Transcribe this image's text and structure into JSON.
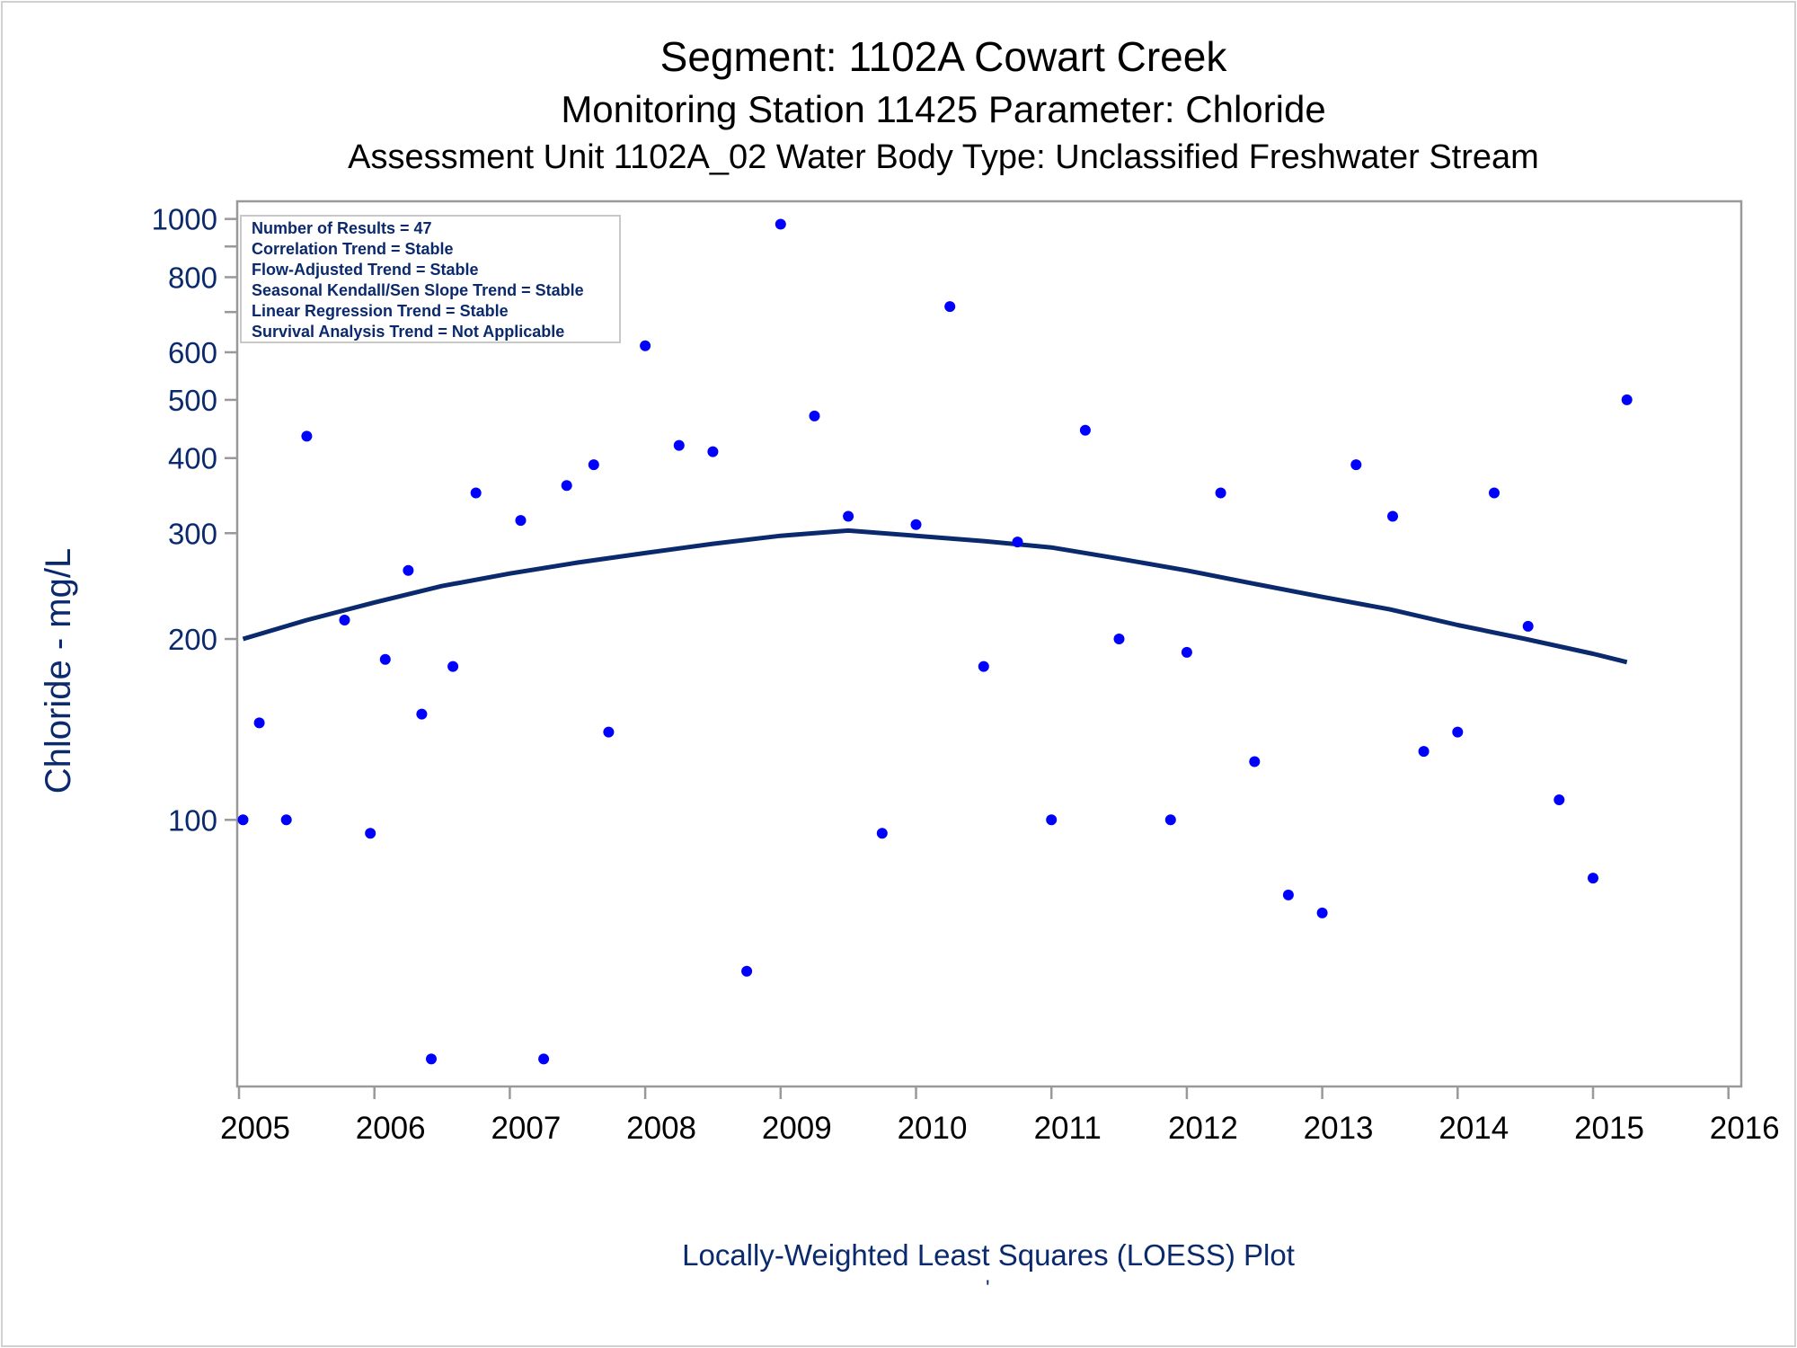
{
  "title": "Segment: 1102A  Cowart Creek",
  "subtitle": "Monitoring Station 11425 Parameter: Chloride",
  "subtitle2": "Assessment Unit 1102A_02   Water Body Type: Unclassified Freshwater Stream",
  "footer": "Locally-Weighted Least Squares (LOESS) Plot",
  "footer_mark": "'",
  "chart_data": {
    "type": "scatter",
    "title": "Segment: 1102A  Cowart Creek",
    "ylabel": "Chloride - mg/L",
    "xlabel": "",
    "yscale": "log",
    "ylim": [
      36,
      1070
    ],
    "xlim": [
      2005,
      2016
    ],
    "grid": false,
    "x_ticks": [
      "2005",
      "2006",
      "2007",
      "2008",
      "2009",
      "2010",
      "2011",
      "2012",
      "2013",
      "2014",
      "2015",
      "2016"
    ],
    "y_ticks": [
      {
        "value": 100,
        "label": "100"
      },
      {
        "value": 200,
        "label": "200"
      },
      {
        "value": 300,
        "label": "300"
      },
      {
        "value": 400,
        "label": "400"
      },
      {
        "value": 500,
        "label": "500"
      },
      {
        "value": 600,
        "label": "600"
      },
      {
        "value": 700,
        "label": ""
      },
      {
        "value": 800,
        "label": "800"
      },
      {
        "value": 900,
        "label": ""
      },
      {
        "value": 1000,
        "label": "1000"
      }
    ],
    "annotation_box": [
      "Number of Results = 47",
      "Correlation Trend = Stable",
      "Flow-Adjusted Trend = Stable",
      "Seasonal Kendall/Sen Slope Trend = Stable",
      "Linear Regression Trend = Stable",
      "Survival Analysis Trend = Not Applicable"
    ],
    "colors": {
      "points": "#0000ff",
      "loess": "#0b2a6e",
      "text": "#0b2a6e"
    },
    "points": [
      {
        "x": 2005.03,
        "y": 100
      },
      {
        "x": 2005.15,
        "y": 145
      },
      {
        "x": 2005.35,
        "y": 100
      },
      {
        "x": 2005.5,
        "y": 435
      },
      {
        "x": 2005.78,
        "y": 215
      },
      {
        "x": 2005.97,
        "y": 95
      },
      {
        "x": 2006.08,
        "y": 185
      },
      {
        "x": 2006.25,
        "y": 260
      },
      {
        "x": 2006.35,
        "y": 150
      },
      {
        "x": 2006.42,
        "y": 40
      },
      {
        "x": 2006.58,
        "y": 180
      },
      {
        "x": 2006.75,
        "y": 350
      },
      {
        "x": 2007.08,
        "y": 315
      },
      {
        "x": 2007.25,
        "y": 40
      },
      {
        "x": 2007.42,
        "y": 360
      },
      {
        "x": 2007.62,
        "y": 390
      },
      {
        "x": 2007.73,
        "y": 140
      },
      {
        "x": 2008.0,
        "y": 615
      },
      {
        "x": 2008.25,
        "y": 420
      },
      {
        "x": 2008.5,
        "y": 410
      },
      {
        "x": 2008.75,
        "y": 56
      },
      {
        "x": 2009.0,
        "y": 980
      },
      {
        "x": 2009.25,
        "y": 470
      },
      {
        "x": 2009.5,
        "y": 320
      },
      {
        "x": 2009.75,
        "y": 95
      },
      {
        "x": 2010.0,
        "y": 310
      },
      {
        "x": 2010.25,
        "y": 715
      },
      {
        "x": 2010.5,
        "y": 180
      },
      {
        "x": 2010.75,
        "y": 290
      },
      {
        "x": 2011.0,
        "y": 100
      },
      {
        "x": 2011.25,
        "y": 445
      },
      {
        "x": 2011.5,
        "y": 200
      },
      {
        "x": 2011.88,
        "y": 100
      },
      {
        "x": 2012.0,
        "y": 190
      },
      {
        "x": 2012.25,
        "y": 350
      },
      {
        "x": 2012.5,
        "y": 125
      },
      {
        "x": 2012.75,
        "y": 75
      },
      {
        "x": 2013.0,
        "y": 70
      },
      {
        "x": 2013.25,
        "y": 390
      },
      {
        "x": 2013.52,
        "y": 320
      },
      {
        "x": 2013.75,
        "y": 130
      },
      {
        "x": 2014.0,
        "y": 140
      },
      {
        "x": 2014.27,
        "y": 350
      },
      {
        "x": 2014.52,
        "y": 210
      },
      {
        "x": 2014.75,
        "y": 108
      },
      {
        "x": 2015.0,
        "y": 80
      },
      {
        "x": 2015.25,
        "y": 500
      }
    ],
    "loess": [
      {
        "x": 2005.03,
        "y": 200
      },
      {
        "x": 2005.5,
        "y": 215
      },
      {
        "x": 2006.0,
        "y": 230
      },
      {
        "x": 2006.5,
        "y": 245
      },
      {
        "x": 2007.0,
        "y": 257
      },
      {
        "x": 2007.5,
        "y": 268
      },
      {
        "x": 2008.0,
        "y": 278
      },
      {
        "x": 2008.5,
        "y": 288
      },
      {
        "x": 2009.0,
        "y": 297
      },
      {
        "x": 2009.5,
        "y": 303
      },
      {
        "x": 2010.0,
        "y": 297
      },
      {
        "x": 2010.5,
        "y": 291
      },
      {
        "x": 2011.0,
        "y": 284
      },
      {
        "x": 2011.5,
        "y": 272
      },
      {
        "x": 2012.0,
        "y": 260
      },
      {
        "x": 2012.5,
        "y": 247
      },
      {
        "x": 2013.0,
        "y": 235
      },
      {
        "x": 2013.5,
        "y": 224
      },
      {
        "x": 2014.0,
        "y": 211
      },
      {
        "x": 2014.5,
        "y": 200
      },
      {
        "x": 2015.0,
        "y": 189
      },
      {
        "x": 2015.25,
        "y": 183
      }
    ]
  }
}
